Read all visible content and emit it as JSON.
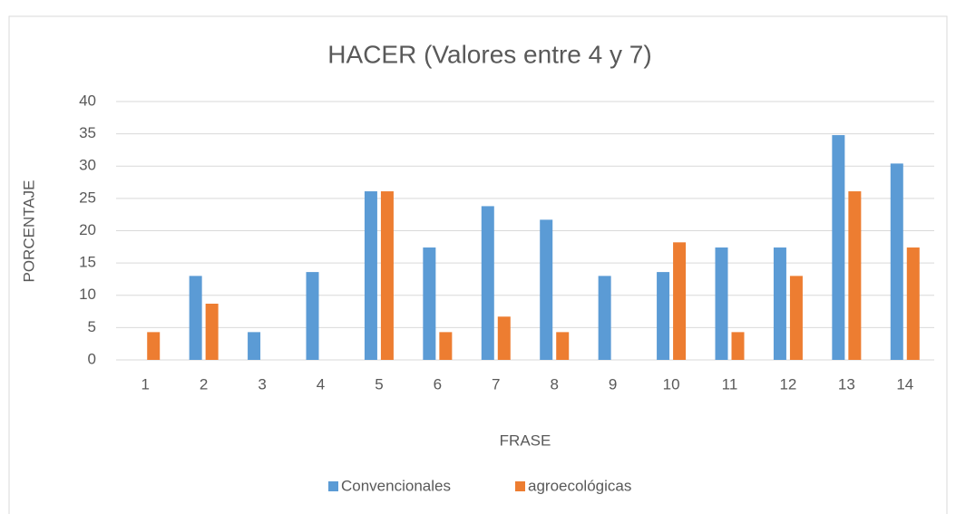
{
  "chart_data": {
    "type": "bar",
    "title": "HACER (Valores entre 4 y 7)",
    "x_label": "FRASE",
    "y_label": "PORCENTAJE",
    "categories": [
      "1",
      "2",
      "3",
      "4",
      "5",
      "6",
      "7",
      "8",
      "9",
      "10",
      "11",
      "12",
      "13",
      "14"
    ],
    "series": [
      {
        "name": "Convencionales",
        "color": "#5b9bd5",
        "values": [
          0,
          13,
          4.3,
          13.6,
          26.1,
          17.4,
          23.8,
          21.7,
          13,
          13.6,
          17.4,
          17.4,
          34.8,
          30.4
        ]
      },
      {
        "name": "agroecológicas",
        "color": "#ed7d31",
        "values": [
          4.3,
          8.7,
          0,
          0,
          26.1,
          4.3,
          6.7,
          4.3,
          0,
          18.2,
          4.3,
          13,
          26.1,
          17.4
        ]
      }
    ],
    "ylim": [
      0,
      40
    ],
    "yticks": [
      0,
      5,
      10,
      15,
      20,
      25,
      30,
      35,
      40
    ],
    "grid": true,
    "legend": "bottom"
  }
}
